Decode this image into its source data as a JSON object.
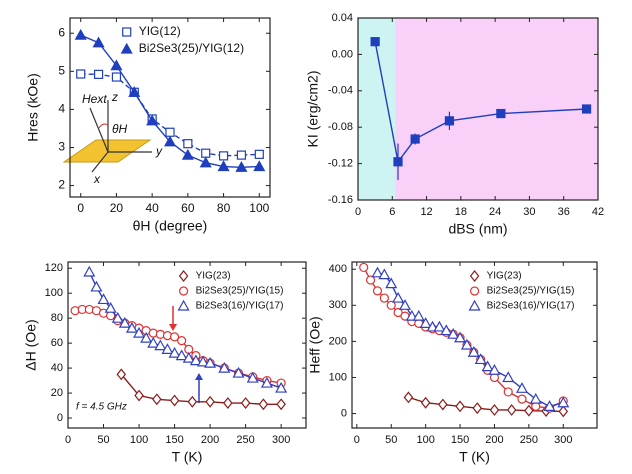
{
  "chart_data": [
    {
      "type": "scatter",
      "x_label": "θH (degree)",
      "y_label": "Hres (kOe)",
      "xlim": [
        -6,
        106
      ],
      "xticks": [
        0,
        20,
        40,
        60,
        80,
        100
      ],
      "ylim": [
        1.7,
        6.4
      ],
      "yticks": [
        2,
        3,
        4,
        5,
        6
      ],
      "legend": "upper right",
      "annotations": [
        "Hext",
        "z",
        "θH",
        "y",
        "x"
      ],
      "series": [
        {
          "name": "YIG(12)",
          "color": "#1f3fbf",
          "marker": "square",
          "filled": false,
          "line": "dashed",
          "x": [
            0,
            10,
            20,
            30,
            40,
            50,
            60,
            70,
            80,
            90,
            100
          ],
          "values": [
            4.93,
            4.92,
            4.85,
            4.45,
            3.75,
            3.4,
            3.1,
            2.85,
            2.78,
            2.8,
            2.82
          ]
        },
        {
          "name": "Bi2Se3(25)/YIG(12)",
          "color": "#1f3fbf",
          "marker": "triangle",
          "filled": true,
          "line": "solid",
          "x": [
            0,
            10,
            20,
            30,
            40,
            50,
            60,
            70,
            80,
            90,
            100
          ],
          "values": [
            5.95,
            5.75,
            5.15,
            4.45,
            3.7,
            3.15,
            2.8,
            2.6,
            2.5,
            2.48,
            2.5
          ]
        }
      ]
    },
    {
      "type": "scatter",
      "x_label": "dBS (nm)",
      "y_label": "KI (erg/cm2)",
      "xlim": [
        0,
        42
      ],
      "xticks": [
        0,
        6,
        12,
        18,
        24,
        30,
        36,
        42
      ],
      "ylim": [
        -0.16,
        0.04
      ],
      "yticks": [
        {
          "value": 0.04,
          "label": "0.04"
        },
        {
          "value": 0,
          "label": "0.00"
        },
        {
          "value": -0.04,
          "label": "-0.04"
        },
        {
          "value": -0.08,
          "label": "-0.08"
        },
        {
          "value": -0.12,
          "label": "-0.12"
        },
        {
          "value": -0.16,
          "label": "-0.16"
        }
      ],
      "regions": [
        {
          "xlim": [
            0,
            6.5
          ],
          "color": "#cdf3f3"
        },
        {
          "xlim": [
            6.5,
            42
          ],
          "color": "#f8d0f8"
        }
      ],
      "series": [
        {
          "color": "#1f3fbf",
          "marker": "square",
          "filled": true,
          "line": "solid",
          "x": [
            3,
            7,
            10,
            16,
            25,
            40
          ],
          "values": [
            0.014,
            -0.118,
            -0.093,
            -0.073,
            -0.065,
            -0.06
          ],
          "errors": [
            0.003,
            0.02,
            0.006,
            0.01,
            0.003,
            0.003
          ]
        }
      ]
    },
    {
      "type": "scatter",
      "x_label": "T (K)",
      "y_label": "ΔH (Oe)",
      "xlim": [
        0,
        335
      ],
      "xticks": [
        0,
        50,
        100,
        150,
        200,
        250,
        300
      ],
      "ylim": [
        -8,
        125
      ],
      "yticks": [
        0,
        20,
        40,
        60,
        80,
        100,
        120
      ],
      "legend": "upper right",
      "annotations": [
        "f = 4.5 GHz"
      ],
      "series": [
        {
          "name": "YIG(23)",
          "color": "#8b1a1a",
          "marker": "diamond",
          "filled": false,
          "line": "solid",
          "x": [
            75,
            100,
            125,
            150,
            175,
            200,
            225,
            250,
            275,
            300
          ],
          "values": [
            35,
            18,
            15,
            14,
            13,
            13,
            12,
            12,
            11,
            11
          ]
        },
        {
          "name": "Bi2Se3(25)/YIG(15)",
          "color": "#e03030",
          "marker": "circle",
          "filled": false,
          "line": "solid",
          "x": [
            10,
            20,
            30,
            40,
            50,
            60,
            70,
            80,
            90,
            100,
            110,
            120,
            130,
            140,
            150,
            160,
            170,
            180,
            190,
            200,
            220,
            240,
            260,
            280,
            300
          ],
          "values": [
            86,
            87,
            87,
            86,
            84,
            82,
            78,
            76,
            74,
            72,
            70,
            68,
            67,
            66,
            65,
            62,
            55,
            50,
            46,
            44,
            40,
            36,
            33,
            30,
            28
          ]
        },
        {
          "name": "Bi2Se3(16)/YIG(17)",
          "color": "#3040c0",
          "marker": "triangle",
          "filled": false,
          "line": "solid",
          "x": [
            30,
            40,
            50,
            60,
            70,
            80,
            90,
            100,
            110,
            120,
            130,
            140,
            150,
            160,
            170,
            180,
            190,
            200,
            220,
            240,
            260,
            280,
            300
          ],
          "values": [
            117,
            105,
            95,
            88,
            80,
            76,
            72,
            68,
            64,
            60,
            58,
            55,
            52,
            50,
            48,
            46,
            45,
            44,
            40,
            36,
            32,
            28,
            24
          ]
        }
      ]
    },
    {
      "type": "scatter",
      "x_label": "T (K)",
      "y_label": "Heff (Oe)",
      "xlim": [
        -7,
        349
      ],
      "xticks": [
        0,
        50,
        100,
        150,
        200,
        250,
        300
      ],
      "ylim": [
        -40,
        420
      ],
      "yticks": [
        0,
        100,
        200,
        300,
        400
      ],
      "legend": "upper right",
      "series": [
        {
          "name": "YIG(23)",
          "color": "#8b1a1a",
          "marker": "diamond",
          "filled": false,
          "line": "solid",
          "x": [
            75,
            100,
            125,
            150,
            175,
            200,
            225,
            250,
            275,
            300
          ],
          "values": [
            45,
            30,
            25,
            20,
            15,
            10,
            10,
            8,
            7,
            6
          ]
        },
        {
          "name": "Bi2Se3(25)/YIG(15)",
          "color": "#e03030",
          "marker": "circle",
          "filled": false,
          "line": "solid",
          "x": [
            10,
            20,
            30,
            40,
            50,
            60,
            70,
            80,
            90,
            100,
            110,
            120,
            130,
            140,
            150,
            160,
            170,
            180,
            190,
            200,
            220,
            240,
            260,
            280,
            300
          ],
          "values": [
            405,
            370,
            340,
            320,
            300,
            280,
            270,
            255,
            250,
            240,
            235,
            230,
            225,
            220,
            210,
            190,
            170,
            150,
            120,
            100,
            60,
            40,
            20,
            15,
            35
          ]
        },
        {
          "name": "Bi2Se3(16)/YIG(17)",
          "color": "#3040c0",
          "marker": "triangle",
          "filled": false,
          "line": "solid",
          "x": [
            30,
            40,
            50,
            60,
            70,
            80,
            90,
            100,
            110,
            120,
            130,
            140,
            150,
            160,
            170,
            180,
            190,
            200,
            220,
            240,
            260,
            280,
            300
          ],
          "values": [
            390,
            385,
            360,
            320,
            300,
            270,
            270,
            250,
            240,
            240,
            230,
            220,
            210,
            190,
            170,
            150,
            130,
            120,
            100,
            70,
            40,
            20,
            30
          ]
        }
      ]
    }
  ]
}
